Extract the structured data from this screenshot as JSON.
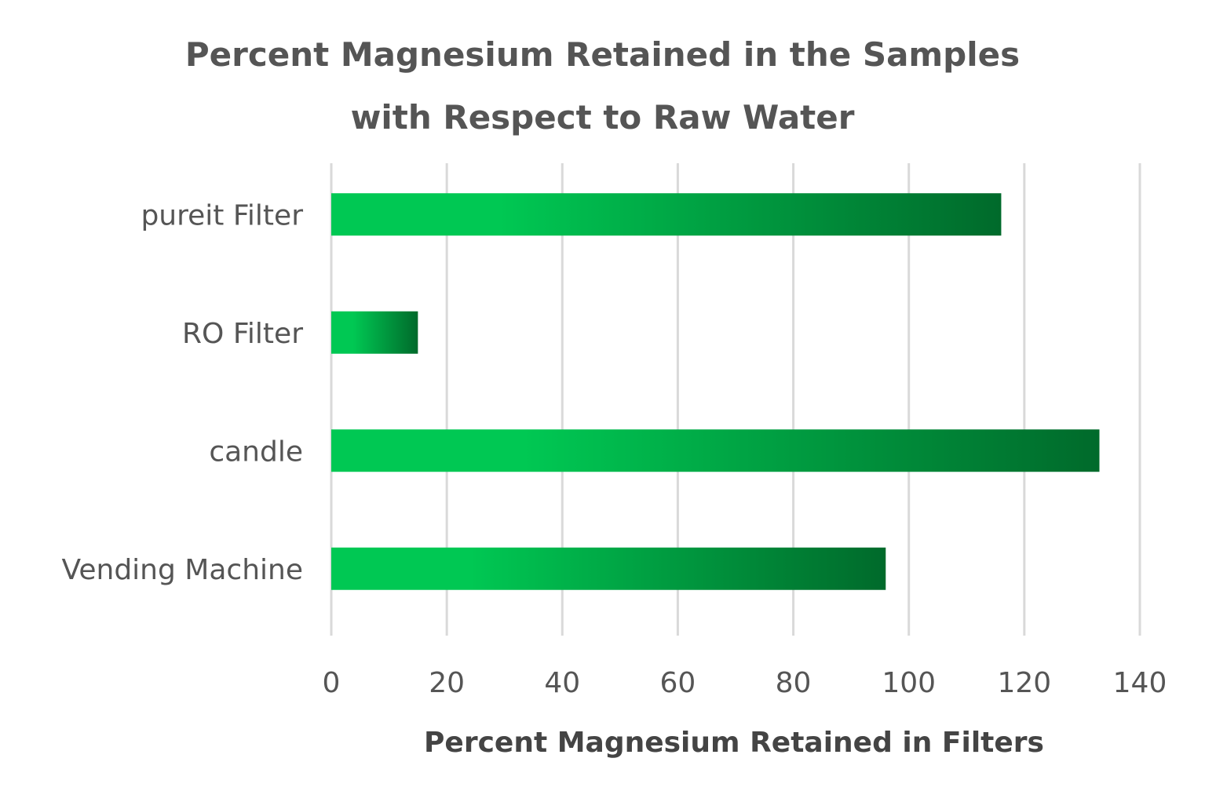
{
  "chart_data": {
    "type": "bar",
    "orientation": "horizontal",
    "title_lines": [
      "Percent Magnesium Retained in the Samples",
      "with Respect to Raw Water"
    ],
    "xlabel": "Percent Magnesium Retained in Filters",
    "ylabel": "",
    "categories": [
      "pureit Filter",
      "RO Filter",
      "candle",
      "Vending Machine"
    ],
    "values": [
      116,
      15,
      133,
      96
    ],
    "xlim": [
      0,
      140
    ],
    "x_ticks": [
      "0",
      "20",
      "40",
      "60",
      "80",
      "100",
      "120",
      "140"
    ],
    "grid": "vertical",
    "legend": "none",
    "colors": {
      "bar_start": "#00c853",
      "bar_end": "#006a2b",
      "gridline": "#d9d9d9",
      "text": "#555555"
    }
  }
}
